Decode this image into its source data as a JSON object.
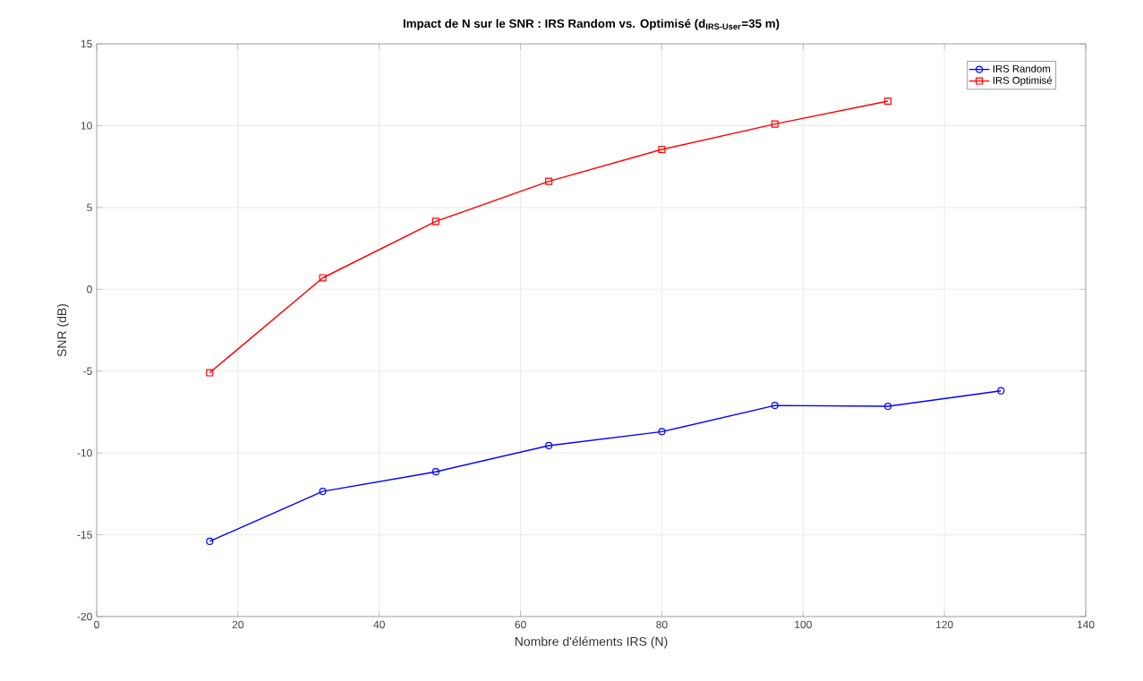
{
  "chart_data": {
    "type": "line",
    "title": "**Impact de N sur le SNR : IRS Random vs. Optimisé (d$_{IRS-User}$=35 m)**",
    "xlabel": "Nombre d'éléments IRS (N)",
    "ylabel": "SNR (dB)",
    "x": [
      16,
      32,
      48,
      64,
      80,
      96,
      112,
      128
    ],
    "series": [
      {
        "name": "IRS Random",
        "color": "#0000ff",
        "marker": "circle",
        "values": [
          -15.4,
          -12.35,
          -11.15,
          -9.55,
          -8.7,
          -7.1,
          -7.15,
          -6.2
        ]
      },
      {
        "name": "IRS Optimisé",
        "color": "#ff0000",
        "marker": "square",
        "values": [
          -5.1,
          0.7,
          4.15,
          6.6,
          8.55,
          10.1,
          11.5,
          null
        ]
      }
    ],
    "xlim": [
      0,
      140
    ],
    "xticks": [
      0,
      20,
      40,
      60,
      80,
      100,
      120,
      140
    ],
    "ylim": [
      -20,
      15
    ],
    "yticks": [
      -20,
      -15,
      -10,
      -5,
      0,
      5,
      10,
      15
    ],
    "grid": true,
    "legend": "top right",
    "line_style": "solid"
  }
}
